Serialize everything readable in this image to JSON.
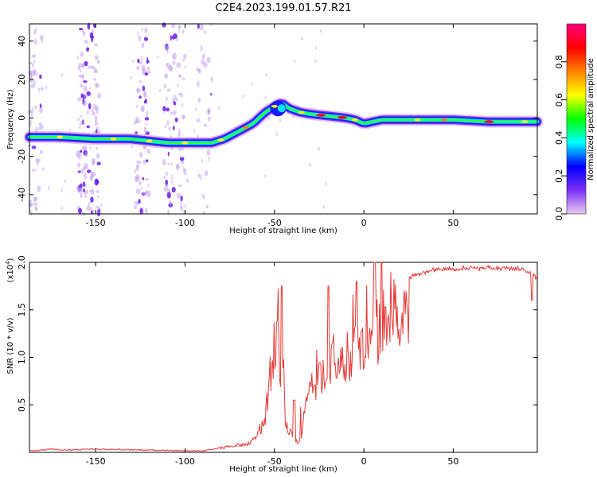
{
  "figure": {
    "title": "C2E4.2023.199.01.57.R21"
  },
  "chart_data": [
    {
      "type": "heatmap",
      "xlabel": "Height of straight line (km)",
      "ylabel": "Frequency (Hz)",
      "xlim": [
        -187,
        97
      ],
      "ylim": [
        -50,
        49
      ],
      "x_ticks": [
        -150,
        -100,
        -50,
        0,
        50
      ],
      "y_ticks": [
        -40,
        -20,
        0,
        20,
        40
      ],
      "ridge": {
        "x": [
          -187,
          -170,
          -150,
          -130,
          -110,
          -95,
          -85,
          -78,
          -70,
          -62,
          -55,
          -50,
          -46,
          -42,
          -36,
          -30,
          -20,
          -10,
          -5,
          0,
          5,
          10,
          20,
          30,
          50,
          70,
          85,
          97
        ],
        "y": [
          -10,
          -10,
          -11,
          -11,
          -13,
          -13,
          -13,
          -11,
          -7,
          -3,
          3,
          6,
          8,
          5,
          3,
          2,
          1,
          0,
          -1,
          -3,
          -2,
          -1,
          -1,
          -1,
          -1,
          -2,
          -2,
          -2
        ]
      },
      "colorbar": {
        "label": "Normalized spectral amplitude",
        "range": [
          0,
          1
        ],
        "ticks": [
          0.0,
          0.2,
          0.4,
          0.6,
          0.8
        ],
        "colors": [
          "#e8ccf2",
          "#7b2ff2",
          "#0000ff",
          "#00ffff",
          "#00ff00",
          "#ffff00",
          "#ff8000",
          "#ff0000",
          "#ff0080"
        ]
      }
    },
    {
      "type": "line",
      "xlabel": "Height of straight line (km)",
      "ylabel": "SNR (10 * v/v)",
      "y_multiplier": "(x10",
      "y_multiplier_exp": "4",
      "y_multiplier_close": ")",
      "xlim": [
        -187,
        97
      ],
      "ylim": [
        0,
        2.0
      ],
      "x_ticks": [
        -150,
        -100,
        -50,
        0,
        50
      ],
      "y_ticks": [
        "0.5",
        "1.0",
        "1.5",
        "2.0"
      ],
      "color": "#e53935",
      "envelope": {
        "x": [
          -187,
          -175,
          -165,
          -150,
          -120,
          -90,
          -82,
          -75,
          -65,
          -60,
          -55,
          -51,
          -48,
          -46,
          -43,
          -40,
          -37,
          -35,
          -30,
          -25,
          -20,
          -15,
          -10,
          -5,
          0,
          5,
          10,
          15,
          20,
          25,
          30,
          40,
          50,
          60,
          70,
          80,
          85,
          90,
          95,
          97
        ],
        "y": [
          0.02,
          0.04,
          0.03,
          0.04,
          0.03,
          0.02,
          0.05,
          0.08,
          0.12,
          0.2,
          0.5,
          1.3,
          1.6,
          0.9,
          0.35,
          0.2,
          0.15,
          0.25,
          0.9,
          1.0,
          1.15,
          1.2,
          1.3,
          1.4,
          1.5,
          1.6,
          1.75,
          1.8,
          1.82,
          1.86,
          1.9,
          1.94,
          1.95,
          1.96,
          1.96,
          1.95,
          1.95,
          1.94,
          1.88,
          1.85
        ]
      },
      "peaks": [
        {
          "x": -46,
          "y": 1.75
        },
        {
          "x": -39,
          "y": 0.55
        },
        {
          "x": -20,
          "y": 1.75
        },
        {
          "x": -4,
          "y": 1.8
        },
        {
          "x": 6,
          "y": 2.0
        },
        {
          "x": 10,
          "y": 2.0
        },
        {
          "x": 94,
          "y": 1.6
        }
      ]
    }
  ]
}
